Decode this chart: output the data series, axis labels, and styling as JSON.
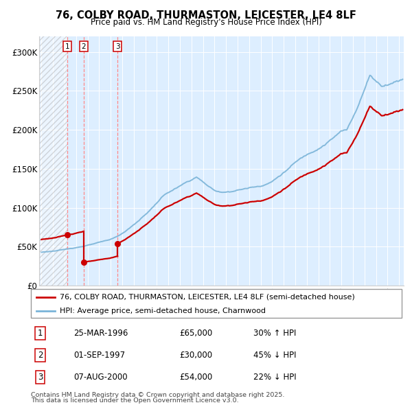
{
  "title1": "76, COLBY ROAD, THURMASTON, LEICESTER, LE4 8LF",
  "title2": "Price paid vs. HM Land Registry's House Price Index (HPI)",
  "legend_line1": "76, COLBY ROAD, THURMASTON, LEICESTER, LE4 8LF (semi-detached house)",
  "legend_line2": "HPI: Average price, semi-detached house, Charnwood",
  "transactions": [
    {
      "num": 1,
      "date": "25-MAR-1996",
      "price": 65000,
      "price_str": "£65,000",
      "pct": "30%",
      "dir": "↑",
      "x_year": 1996.23
    },
    {
      "num": 2,
      "date": "01-SEP-1997",
      "price": 30000,
      "price_str": "£30,000",
      "pct": "45%",
      "dir": "↓",
      "x_year": 1997.67
    },
    {
      "num": 3,
      "date": "07-AUG-2000",
      "price": 54000,
      "price_str": "£54,000",
      "pct": "22%",
      "dir": "↓",
      "x_year": 2000.6
    }
  ],
  "footnote1": "Contains HM Land Registry data © Crown copyright and database right 2025.",
  "footnote2": "This data is licensed under the Open Government Licence v3.0.",
  "hpi_color": "#7ab4d8",
  "price_color": "#cc0000",
  "background_plot": "#ddeeff",
  "vline_color": "#ff8888",
  "ylim": [
    0,
    320000
  ],
  "xlim_start": 1993.8,
  "xlim_end": 2025.4,
  "yticks": [
    0,
    50000,
    100000,
    150000,
    200000,
    250000,
    300000
  ],
  "ytick_labels": [
    "£0",
    "£50K",
    "£100K",
    "£150K",
    "£200K",
    "£250K",
    "£300K"
  ]
}
